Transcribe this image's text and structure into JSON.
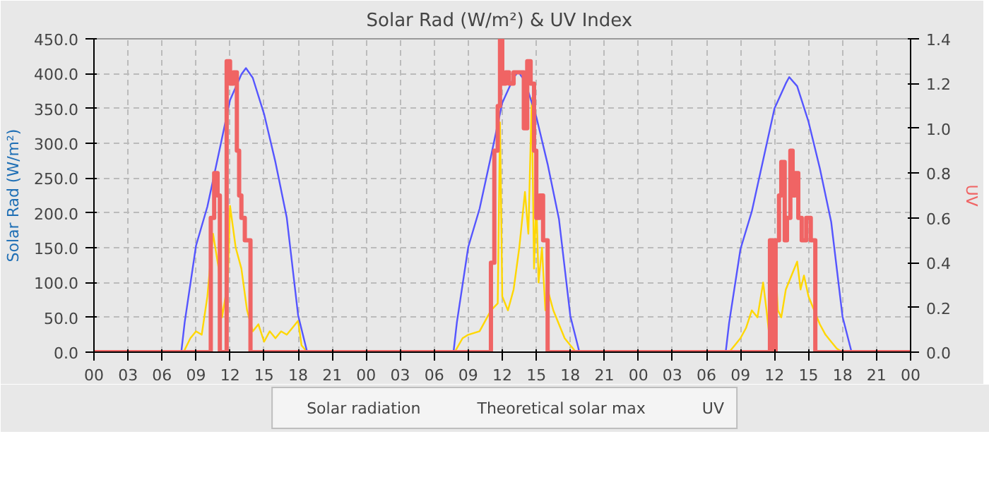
{
  "chart_data": {
    "type": "line",
    "title": "Solar Rad (W/m²) &  UV Index",
    "ylabel": "Solar Rad (W/m²)",
    "y2label": "UV",
    "xlim": [
      0,
      72
    ],
    "xticks": [
      {
        "value": 0,
        "label": "00"
      },
      {
        "value": 3,
        "label": "03"
      },
      {
        "value": 6,
        "label": "06"
      },
      {
        "value": 9,
        "label": "09"
      },
      {
        "value": 12,
        "label": "12"
      },
      {
        "value": 15,
        "label": "15"
      },
      {
        "value": 18,
        "label": "18"
      },
      {
        "value": 21,
        "label": "21"
      },
      {
        "value": 24,
        "label": "00"
      },
      {
        "value": 27,
        "label": "03"
      },
      {
        "value": 30,
        "label": "06"
      },
      {
        "value": 33,
        "label": "09"
      },
      {
        "value": 36,
        "label": "12"
      },
      {
        "value": 39,
        "label": "15"
      },
      {
        "value": 42,
        "label": "18"
      },
      {
        "value": 45,
        "label": "21"
      },
      {
        "value": 48,
        "label": "00"
      },
      {
        "value": 51,
        "label": "03"
      },
      {
        "value": 54,
        "label": "06"
      },
      {
        "value": 57,
        "label": "09"
      },
      {
        "value": 60,
        "label": "12"
      },
      {
        "value": 63,
        "label": "15"
      },
      {
        "value": 66,
        "label": "18"
      },
      {
        "value": 69,
        "label": "21"
      },
      {
        "value": 72,
        "label": "00"
      }
    ],
    "ylim": [
      0,
      450
    ],
    "yticks": [
      {
        "value": 0,
        "label": "0.0"
      },
      {
        "value": 50,
        "label": "50.0"
      },
      {
        "value": 100,
        "label": "100.0"
      },
      {
        "value": 150,
        "label": "150.0"
      },
      {
        "value": 200,
        "label": "200.0"
      },
      {
        "value": 250,
        "label": "250.0"
      },
      {
        "value": 300,
        "label": "300.0"
      },
      {
        "value": 350,
        "label": "350.0"
      },
      {
        "value": 400,
        "label": "400.0"
      },
      {
        "value": 450,
        "label": "450.0"
      }
    ],
    "y2lim": [
      0,
      1.4
    ],
    "y2ticks": [
      {
        "value": 0,
        "label": "0.0"
      },
      {
        "value": 0.2,
        "label": "0.2"
      },
      {
        "value": 0.4,
        "label": "0.4"
      },
      {
        "value": 0.6,
        "label": "0.6"
      },
      {
        "value": 0.8,
        "label": "0.8"
      },
      {
        "value": 1.0,
        "label": "1.0"
      },
      {
        "value": 1.2,
        "label": "1.2"
      },
      {
        "value": 1.4,
        "label": "1.4"
      }
    ],
    "grid": true,
    "legend": "bottom",
    "series": [
      {
        "name": "Solar radiation",
        "color": "#ffd700",
        "type": "line",
        "x": [
          0,
          7.9,
          8.5,
          9,
          9.5,
          10,
          10.5,
          11,
          11.3,
          11.8,
          12,
          12.5,
          13,
          13.5,
          14,
          14.5,
          15,
          15.5,
          16,
          16.5,
          17,
          17.5,
          18,
          18.3,
          18.8,
          31.8,
          32.5,
          33,
          34,
          34.5,
          35,
          35.6,
          35.8,
          36,
          36.5,
          37,
          37.5,
          38,
          38.3,
          38.6,
          38.8,
          39,
          39.2,
          39.5,
          39.8,
          40,
          40.5,
          41,
          41.5,
          42,
          42.5,
          56,
          56.5,
          57,
          57.5,
          58,
          58.5,
          59,
          59.3,
          59.5,
          60,
          60.3,
          60.6,
          61,
          61.5,
          62,
          62.3,
          62.6,
          63,
          63.5,
          64,
          64.5,
          65,
          65.5,
          66,
          72
        ],
        "values": [
          0,
          0,
          20,
          30,
          25,
          80,
          170,
          120,
          50,
          100,
          210,
          150,
          120,
          60,
          30,
          40,
          15,
          30,
          20,
          30,
          25,
          35,
          45,
          10,
          0,
          0,
          20,
          25,
          30,
          45,
          60,
          70,
          330,
          80,
          60,
          90,
          150,
          230,
          170,
          365,
          120,
          220,
          100,
          150,
          60,
          90,
          60,
          40,
          20,
          10,
          0,
          0,
          10,
          20,
          35,
          60,
          50,
          100,
          60,
          30,
          155,
          60,
          50,
          90,
          110,
          130,
          90,
          110,
          80,
          60,
          40,
          25,
          15,
          5,
          0,
          0
        ]
      },
      {
        "name": "Theoretical solar max",
        "color": "#5555ff",
        "x": [
          0,
          7.7,
          8,
          9,
          10,
          11,
          12,
          13,
          13.4,
          14,
          15,
          16,
          17,
          18,
          18.8,
          31.7,
          32,
          33,
          34,
          35,
          36,
          37,
          37.4,
          38,
          39,
          40,
          41,
          42,
          42.8,
          55.7,
          56,
          57,
          58,
          59,
          60,
          61,
          61.3,
          62,
          63,
          64,
          65,
          66,
          66.8,
          72
        ],
        "values": [
          0,
          0,
          43,
          153,
          209,
          285,
          362,
          399,
          408,
          394,
          342,
          273,
          193,
          53,
          0,
          0,
          43,
          151,
          206,
          281,
          358,
          394,
          403,
          389,
          338,
          270,
          191,
          52,
          0,
          0,
          42,
          148,
          202,
          276,
          350,
          386,
          395,
          382,
          331,
          264,
          187,
          51,
          0,
          0
        ]
      },
      {
        "name": "UV",
        "color": "#f06464",
        "type": "step",
        "axis": "y2",
        "x": [
          0,
          10.3,
          10.6,
          10.9,
          11.1,
          11.7,
          12,
          12.3,
          12.6,
          12.8,
          13,
          13.3,
          13.8,
          35,
          35.3,
          35.6,
          35.8,
          36,
          36.3,
          36.6,
          37,
          37.5,
          37.9,
          38.2,
          38.5,
          38.8,
          39,
          39.3,
          39.6,
          40,
          59.6,
          59.9,
          60.1,
          60.4,
          60.6,
          60.9,
          61.1,
          61.4,
          61.6,
          61.8,
          62.1,
          62.4,
          62.8,
          63.2,
          63.6,
          72
        ],
        "values": [
          0,
          0.6,
          0.8,
          0.7,
          0,
          1.3,
          1.2,
          1.25,
          0.9,
          0.7,
          0.6,
          0.5,
          0,
          0.4,
          0.9,
          1.1,
          1.4,
          1.2,
          1.25,
          1.2,
          1.25,
          1.25,
          1.0,
          1.3,
          1.2,
          0.9,
          0.6,
          0.7,
          0.5,
          0,
          0.5,
          0,
          0.5,
          0.7,
          0.85,
          0.5,
          0.6,
          0.9,
          0.7,
          0.8,
          0.6,
          0.5,
          0.6,
          0.5,
          0,
          0
        ]
      }
    ]
  }
}
